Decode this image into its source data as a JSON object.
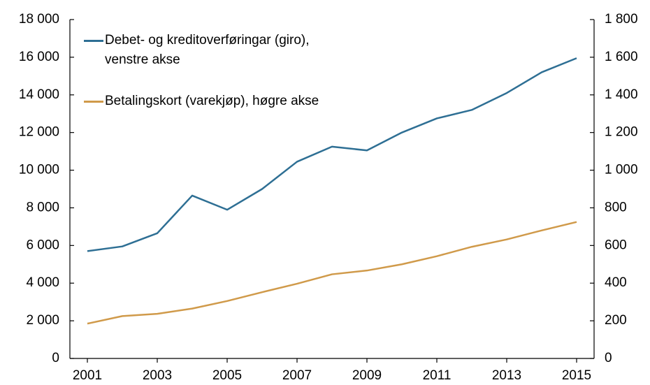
{
  "chart_data": {
    "type": "line",
    "x": [
      2001,
      2002,
      2003,
      2004,
      2005,
      2006,
      2007,
      2008,
      2009,
      2010,
      2011,
      2012,
      2013,
      2014,
      2015
    ],
    "xlim": [
      2000.5,
      2015.5
    ],
    "xticks": [
      2001,
      2003,
      2005,
      2007,
      2009,
      2011,
      2013,
      2015
    ],
    "ylim": [
      0,
      18000
    ],
    "yticks": [
      0,
      {
        "value": 2000,
        "label": "2 000"
      },
      {
        "value": 4000,
        "label": "4 000"
      },
      {
        "value": 6000,
        "label": "6 000"
      },
      {
        "value": 8000,
        "label": "8 000"
      },
      {
        "value": 10000,
        "label": "10 000"
      },
      {
        "value": 12000,
        "label": "12 000"
      },
      {
        "value": 14000,
        "label": "14 000"
      },
      {
        "value": 16000,
        "label": "16 000"
      },
      {
        "value": 18000,
        "label": "18 000"
      }
    ],
    "y2lim": [
      0,
      1800
    ],
    "y2ticks": [
      0,
      200,
      400,
      600,
      800,
      {
        "value": 1000,
        "label": "1 000"
      },
      {
        "value": 1200,
        "label": "1 200"
      },
      {
        "value": 1400,
        "label": "1 400"
      },
      {
        "value": 1600,
        "label": "1 600"
      },
      {
        "value": 1800,
        "label": "1 800"
      }
    ],
    "grid": false,
    "legend": "upper left",
    "series": [
      {
        "name": "Debet- og kreditoverføringar (giro), venstre akse",
        "color": "#2e6f94",
        "values": [
          5700,
          5950,
          6650,
          8650,
          7900,
          9000,
          10450,
          11250,
          11050,
          12000,
          12750,
          13200,
          14100,
          15200,
          15950
        ]
      },
      {
        "name": "Betalingskort (varekjøp), høgre akse",
        "color": "#d09a4a",
        "axis": "y2",
        "values": [
          185,
          225,
          237,
          265,
          305,
          352,
          397,
          447,
          467,
          500,
          543,
          593,
          632,
          680,
          725
        ]
      }
    ]
  }
}
